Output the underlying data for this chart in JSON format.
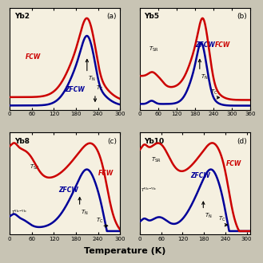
{
  "panels": [
    {
      "label": "Yb2",
      "panel_id": "(a)",
      "xlim": [
        0,
        300
      ],
      "xticks": [
        0,
        60,
        120,
        180,
        240,
        300
      ],
      "T_SR": null,
      "T_Yb_Yb": null,
      "T_N": 210,
      "T_C": 232,
      "has_T_SR": false,
      "has_T_YbYb": false
    },
    {
      "label": "Yb5",
      "panel_id": "(b)",
      "xlim": [
        0,
        360
      ],
      "xticks": [
        0,
        60,
        120,
        180,
        240,
        300,
        360
      ],
      "T_SR": 50,
      "T_Yb_Yb": null,
      "T_N": 195,
      "T_C": 270,
      "has_T_SR": true,
      "has_T_YbYb": false
    },
    {
      "label": "Yb8",
      "panel_id": "(c)",
      "xlim": [
        0,
        300
      ],
      "xticks": [
        0,
        60,
        120,
        180,
        240,
        300
      ],
      "T_SR": 70,
      "T_Yb_Yb": 15,
      "T_N": 190,
      "T_C": 275,
      "has_T_SR": true,
      "has_T_YbYb": true
    },
    {
      "label": "Yb10",
      "panel_id": "(d)",
      "xlim": [
        0,
        310
      ],
      "xticks": [
        0,
        60,
        120,
        180,
        240,
        300
      ],
      "T_SR": 55,
      "T_Yb_Yb": 15,
      "T_N": 178,
      "T_C": 255,
      "has_T_SR": true,
      "has_T_YbYb": true
    }
  ],
  "fcw_color": "#cc0000",
  "zfcw_color": "#000099",
  "lw": 1.8,
  "xlabel": "Temperature (K)",
  "bg_color": "#f5f0e0",
  "fig_bg": "#c8c4b4"
}
